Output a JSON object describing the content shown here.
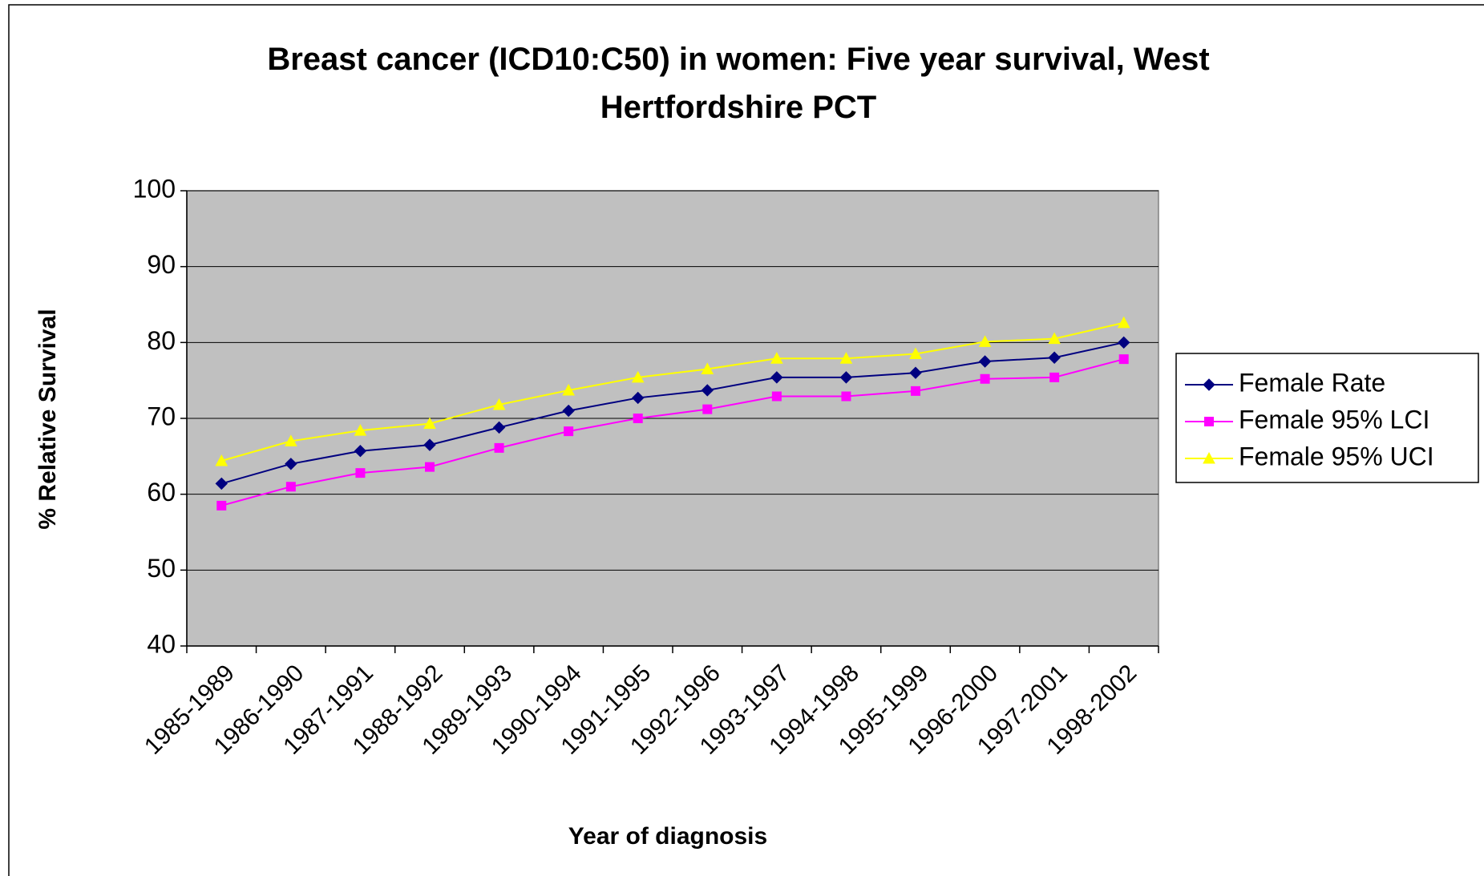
{
  "chart_data": {
    "type": "line",
    "title": "Breast cancer (ICD10:C50) in women: Five year survival, West Hertfordshire PCT",
    "xlabel": "Year of diagnosis",
    "ylabel": "% Relative Survival",
    "categories": [
      "1985-1989",
      "1986-1990",
      "1987-1991",
      "1988-1992",
      "1989-1993",
      "1990-1994",
      "1991-1995",
      "1992-1996",
      "1993-1997",
      "1994-1998",
      "1995-1999",
      "1996-2000",
      "1997-2001",
      "1998-2002"
    ],
    "series": [
      {
        "name": "Female Rate",
        "color": "#000080",
        "marker": "diamond",
        "values": [
          61.4,
          64,
          65.7,
          66.5,
          68.8,
          71,
          72.7,
          73.7,
          75.4,
          75.4,
          76,
          77.5,
          78,
          80
        ]
      },
      {
        "name": "Female 95% LCI",
        "color": "#ff00ff",
        "marker": "square",
        "values": [
          58.5,
          61,
          62.8,
          63.6,
          66.1,
          68.3,
          70,
          71.2,
          72.9,
          72.9,
          73.6,
          75.2,
          75.4,
          77.8
        ]
      },
      {
        "name": "Female 95% UCI",
        "color": "#ffff00",
        "marker": "triangle",
        "values": [
          64.4,
          67,
          68.4,
          69.3,
          71.8,
          73.7,
          75.4,
          76.5,
          77.9,
          77.9,
          78.5,
          80.1,
          80.5,
          82.6
        ]
      }
    ],
    "ylim": [
      40,
      100
    ],
    "yticks": [
      40,
      50,
      60,
      70,
      80,
      90,
      100
    ],
    "grid": true,
    "legend": "right"
  }
}
